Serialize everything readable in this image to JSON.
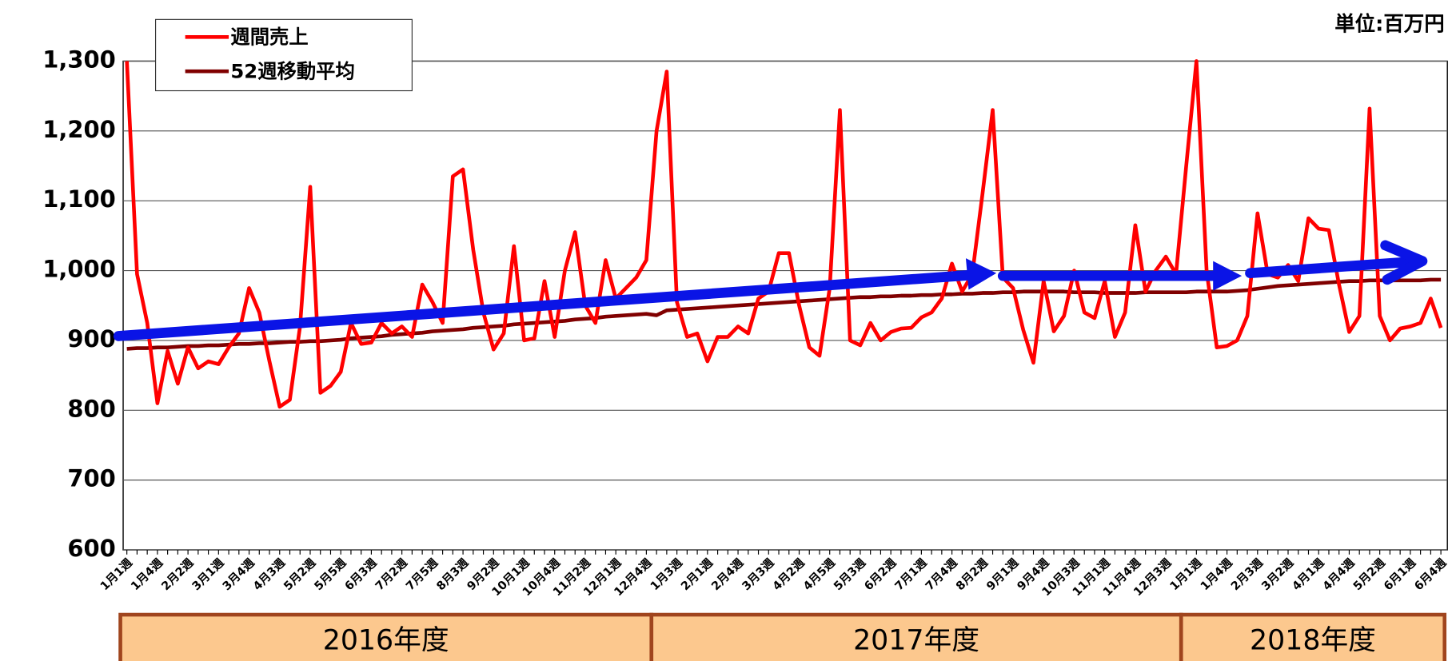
{
  "chart_data": {
    "type": "line",
    "unit_label": "単位:百万円",
    "categories": [
      "1月1週",
      null,
      null,
      "1月4週",
      null,
      null,
      "2月2週",
      null,
      null,
      "3月1週",
      null,
      null,
      "3月4週",
      null,
      null,
      "4月3週",
      null,
      null,
      "5月2週",
      null,
      null,
      "5月5週",
      null,
      null,
      "6月3週",
      null,
      null,
      "7月2週",
      null,
      null,
      "7月5週",
      null,
      null,
      "8月3週",
      null,
      null,
      "9月2週",
      null,
      null,
      "10月1週",
      null,
      null,
      "10月4週",
      null,
      null,
      "11月2週",
      null,
      null,
      "12月1週",
      null,
      null,
      "12月4週",
      null,
      null,
      "1月3週",
      null,
      null,
      "2月1週",
      null,
      null,
      "2月4週",
      null,
      null,
      "3月3週",
      null,
      null,
      "4月2週",
      null,
      null,
      "4月5週",
      null,
      null,
      "5月3週",
      null,
      null,
      "6月2週",
      null,
      null,
      "7月1週",
      null,
      null,
      "7月4週",
      null,
      null,
      "8月2週",
      null,
      null,
      "9月1週",
      null,
      null,
      "9月4週",
      null,
      null,
      "10月3週",
      null,
      null,
      "11月1週",
      null,
      null,
      "11月4週",
      null,
      null,
      "12月3週",
      null,
      null,
      "1月1週",
      null,
      null,
      "1月4週",
      null,
      null,
      "2月3週",
      null,
      null,
      "3月2週",
      null,
      null,
      "4月1週",
      null,
      null,
      "4月4週",
      null,
      null,
      "5月2週",
      null,
      null,
      "6月1週",
      null,
      null,
      "6月4週"
    ],
    "series": [
      {
        "name": "週間売上",
        "color": "#ff0000",
        "values": [
          1300,
          995,
          925,
          810,
          885,
          838,
          890,
          860,
          870,
          866,
          890,
          910,
          975,
          940,
          870,
          805,
          815,
          920,
          1120,
          825,
          835,
          855,
          925,
          895,
          897,
          925,
          910,
          920,
          905,
          980,
          955,
          925,
          1135,
          1145,
          1030,
          940,
          887,
          910,
          1035,
          900,
          903,
          985,
          905,
          1000,
          1055,
          950,
          925,
          1015,
          960,
          975,
          990,
          1015,
          1200,
          1285,
          955,
          905,
          910,
          870,
          905,
          905,
          920,
          910,
          960,
          970,
          1025,
          1025,
          950,
          890,
          878,
          975,
          1230,
          900,
          893,
          925,
          900,
          912,
          917,
          918,
          933,
          940,
          960,
          1010,
          970,
          995,
          1110,
          1230,
          990,
          975,
          915,
          868,
          985,
          913,
          935,
          1000,
          940,
          932,
          985,
          905,
          940,
          1065,
          970,
          1000,
          1020,
          995,
          1150,
          1300,
          1000,
          890,
          892,
          900,
          935,
          1082,
          995,
          990,
          1008,
          985,
          1075,
          1060,
          1058,
          980,
          912,
          935,
          1232,
          935,
          900,
          917,
          920,
          925,
          960,
          918
        ]
      },
      {
        "name": "52週移動平均",
        "color": "#800000",
        "values": [
          888,
          889,
          889,
          890,
          890,
          891,
          892,
          892,
          893,
          893,
          894,
          895,
          895,
          896,
          896,
          897,
          898,
          898,
          899,
          899,
          900,
          901,
          903,
          904,
          905,
          906,
          908,
          909,
          910,
          911,
          913,
          914,
          915,
          916,
          918,
          919,
          920,
          921,
          923,
          924,
          925,
          926,
          927,
          928,
          930,
          931,
          932,
          934,
          935,
          936,
          937,
          938,
          936,
          943,
          944,
          945,
          946,
          947,
          948,
          949,
          950,
          951,
          952,
          953,
          954,
          955,
          956,
          957,
          958,
          959,
          960,
          961,
          962,
          962,
          963,
          963,
          964,
          964,
          965,
          965,
          966,
          966,
          967,
          967,
          968,
          968,
          969,
          969,
          970,
          970,
          970,
          970,
          970,
          969,
          969,
          969,
          968,
          968,
          968,
          968,
          969,
          969,
          969,
          969,
          969,
          970,
          970,
          970,
          970,
          971,
          972,
          974,
          976,
          978,
          979,
          980,
          981,
          982,
          983,
          984,
          985,
          985,
          986,
          986,
          986,
          986,
          986,
          986,
          987,
          987
        ]
      }
    ],
    "periods": [
      {
        "label": "2016年度",
        "start": 0,
        "end": 51
      },
      {
        "label": "2017年度",
        "start": 52,
        "end": 103
      },
      {
        "label": "2018年度",
        "start": 104,
        "end": 129
      }
    ],
    "ylim": [
      600,
      1300
    ],
    "yticks": [
      600,
      700,
      800,
      900,
      {
        "value": 1000,
        "label": "1,000"
      },
      {
        "value": 1100,
        "label": "1,100"
      },
      {
        "value": 1200,
        "label": "1,200"
      },
      {
        "value": 1300,
        "label": "1,300"
      }
    ],
    "grid": true,
    "legend": "upper left"
  }
}
